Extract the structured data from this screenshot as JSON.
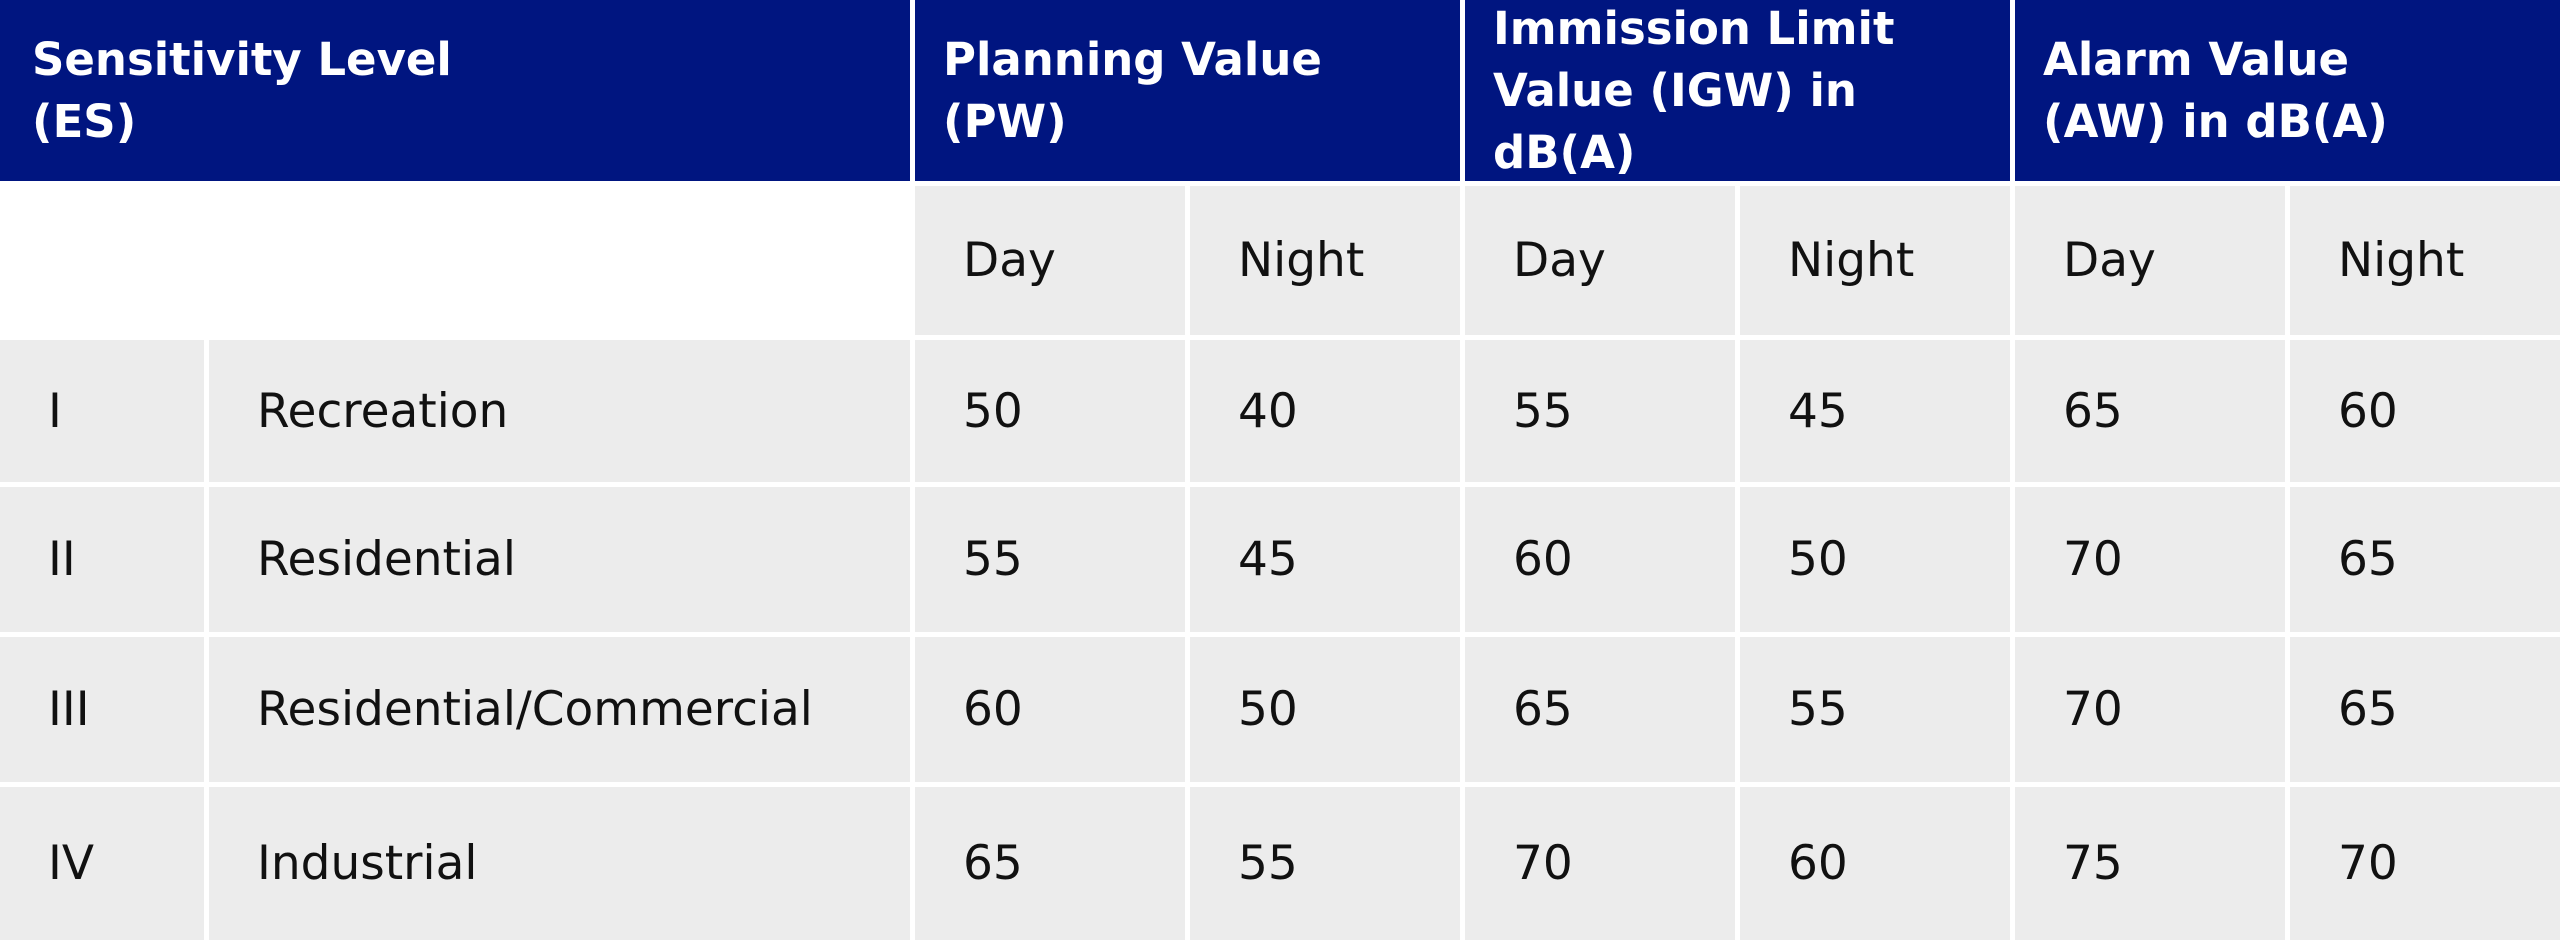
{
  "table": {
    "headers": [
      {
        "lines": [
          "Sensitivity Level",
          "(ES)"
        ]
      },
      {
        "lines": [
          "Planning Value",
          "(PW)"
        ]
      },
      {
        "lines": [
          "Immission Limit",
          "Value (IGW) in dB(A)"
        ]
      },
      {
        "lines": [
          "Alarm Value",
          "(AW) in dB(A)"
        ]
      }
    ],
    "subheaders": [
      "Day",
      "Night",
      "Day",
      "Night",
      "Day",
      "Night"
    ],
    "rows": [
      [
        "I",
        "Recreation",
        50,
        40,
        55,
        45,
        65,
        60
      ],
      [
        "II",
        "Residential",
        55,
        45,
        60,
        50,
        70,
        65
      ],
      [
        "III",
        "Residential/Commercial",
        60,
        50,
        65,
        55,
        70,
        65
      ],
      [
        "IV",
        "Industrial",
        65,
        55,
        70,
        60,
        75,
        70
      ]
    ]
  }
}
